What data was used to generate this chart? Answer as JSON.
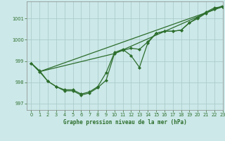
{
  "title": "Graphe pression niveau de la mer (hPa)",
  "background_color": "#cce8e8",
  "line_color": "#2d6e2d",
  "grid_color": "#a8c8c8",
  "text_color": "#2d6e2d",
  "xlim": [
    -0.5,
    23
  ],
  "ylim": [
    996.7,
    1001.8
  ],
  "yticks": [
    997,
    998,
    999,
    1000,
    1001
  ],
  "xticks": [
    0,
    1,
    2,
    3,
    4,
    5,
    6,
    7,
    8,
    9,
    10,
    11,
    12,
    13,
    14,
    15,
    16,
    17,
    18,
    19,
    20,
    21,
    22,
    23
  ],
  "line1": {
    "x": [
      0,
      1,
      23
    ],
    "y": [
      998.9,
      998.5,
      1001.55
    ]
  },
  "line2": {
    "x": [
      0,
      1,
      2,
      3,
      4,
      5,
      6,
      7,
      8,
      9,
      10,
      11,
      12,
      13,
      14,
      15,
      16,
      17,
      18,
      19,
      20,
      21,
      22,
      23
    ],
    "y": [
      998.9,
      998.5,
      998.05,
      997.8,
      997.65,
      997.65,
      997.45,
      997.55,
      997.8,
      998.45,
      999.4,
      999.55,
      999.25,
      998.7,
      999.85,
      1000.3,
      1000.4,
      1000.4,
      1000.45,
      1000.8,
      1001.05,
      1001.3,
      1001.5,
      1001.55
    ]
  },
  "line3": {
    "x": [
      1,
      10,
      23
    ],
    "y": [
      998.5,
      999.35,
      1001.6
    ]
  },
  "line4": {
    "x": [
      0,
      1,
      2,
      3,
      4,
      5,
      6,
      7,
      8,
      9,
      10,
      11,
      12,
      13,
      14,
      15,
      16,
      17,
      18,
      19,
      20,
      21,
      22,
      23
    ],
    "y": [
      998.9,
      998.55,
      998.05,
      997.8,
      997.6,
      997.6,
      997.4,
      997.5,
      997.75,
      998.1,
      999.35,
      999.5,
      999.6,
      999.55,
      999.9,
      1000.3,
      1000.4,
      1000.4,
      1000.45,
      1000.8,
      1001.0,
      1001.25,
      1001.45,
      1001.55
    ]
  }
}
